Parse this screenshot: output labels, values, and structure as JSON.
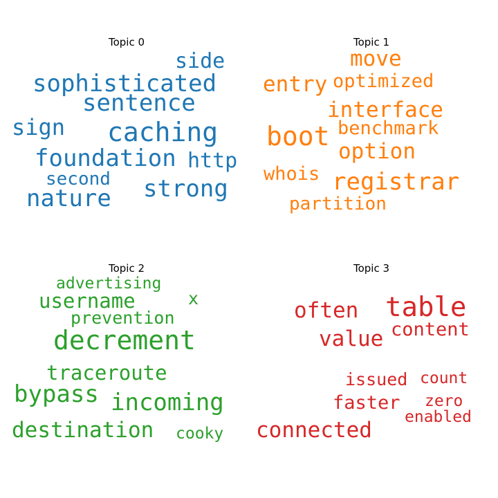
{
  "chart_data": [
    {
      "type": "wordcloud",
      "title": "Topic 0",
      "color": "#1f77b4",
      "words": [
        "caching",
        "sophisticated",
        "foundation",
        "nature",
        "strong",
        "sentence",
        "sign",
        "http",
        "side",
        "second"
      ]
    },
    {
      "type": "wordcloud",
      "title": "Topic 1",
      "color": "#ff7f0e",
      "words": [
        "boot",
        "registrar",
        "option",
        "interface",
        "move",
        "entry",
        "optimized",
        "benchmark",
        "whois",
        "partition"
      ]
    },
    {
      "type": "wordcloud",
      "title": "Topic 2",
      "color": "#2ca02c",
      "words": [
        "decrement",
        "incoming",
        "bypass",
        "destination",
        "traceroute",
        "username",
        "prevention",
        "advertising",
        "x",
        "cooky"
      ]
    },
    {
      "type": "wordcloud",
      "title": "Topic 3",
      "color": "#d62728",
      "words": [
        "table",
        "often",
        "value",
        "content",
        "connected",
        "faster",
        "issued",
        "count",
        "zero",
        "enabled"
      ]
    }
  ]
}
